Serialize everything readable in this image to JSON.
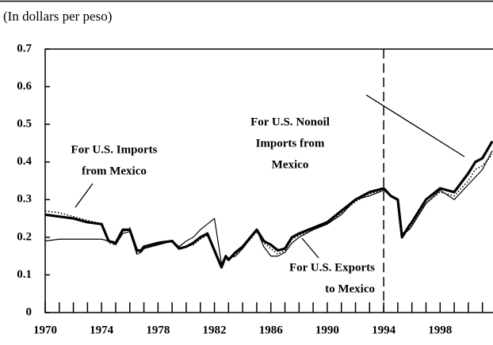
{
  "chart_data": {
    "type": "line",
    "subtitle": "(In dollars per peso)",
    "x": [
      1970,
      1971,
      1972,
      1973,
      1974,
      1974.5,
      1975,
      1975.5,
      1976,
      1976.5,
      1976.8,
      1977,
      1978,
      1979,
      1979.5,
      1980,
      1980.5,
      1981,
      1981.5,
      1982,
      1982.5,
      1982.8,
      1983,
      1983.5,
      1984,
      1985,
      1985.5,
      1986,
      1986.5,
      1987,
      1987.5,
      1988,
      1989,
      1990,
      1991,
      1992,
      1993,
      1994,
      1994.5,
      1995,
      1995.3,
      1995.8,
      1996,
      1997,
      1998,
      1999,
      2000,
      2000.5,
      2001,
      2001.7
    ],
    "series": [
      {
        "name": "For U.S. Nonoil Imports from Mexico",
        "color": "#000",
        "style": "thick",
        "values": [
          0.26,
          0.255,
          0.25,
          0.24,
          0.235,
          0.19,
          0.185,
          0.22,
          0.22,
          0.165,
          0.165,
          0.175,
          0.185,
          0.19,
          0.17,
          0.175,
          0.185,
          0.2,
          0.21,
          0.165,
          0.12,
          0.15,
          0.14,
          0.16,
          0.175,
          0.22,
          0.19,
          0.18,
          0.165,
          0.17,
          0.2,
          0.21,
          0.225,
          0.24,
          0.27,
          0.3,
          0.32,
          0.33,
          0.31,
          0.3,
          0.2,
          0.23,
          0.24,
          0.3,
          0.33,
          0.32,
          0.37,
          0.4,
          0.41,
          0.455
        ]
      },
      {
        "name": "For U.S. Imports from Mexico",
        "color": "#000",
        "style": "dotted",
        "values": [
          0.27,
          0.265,
          0.255,
          0.245,
          0.235,
          0.185,
          0.18,
          0.215,
          0.225,
          0.16,
          0.16,
          0.17,
          0.18,
          0.19,
          0.17,
          0.175,
          0.18,
          0.195,
          0.205,
          0.17,
          0.12,
          0.145,
          0.14,
          0.155,
          0.17,
          0.215,
          0.185,
          0.17,
          0.155,
          0.165,
          0.195,
          0.205,
          0.22,
          0.235,
          0.265,
          0.295,
          0.315,
          0.325,
          0.31,
          0.3,
          0.205,
          0.22,
          0.23,
          0.29,
          0.32,
          0.31,
          0.35,
          0.38,
          0.39,
          0.42
        ]
      },
      {
        "name": "For U.S. Exports to Mexico",
        "color": "#000",
        "style": "thin",
        "values": [
          0.19,
          0.195,
          0.195,
          0.195,
          0.195,
          0.19,
          0.18,
          0.21,
          0.215,
          0.155,
          0.16,
          0.17,
          0.18,
          0.19,
          0.175,
          0.19,
          0.2,
          0.22,
          0.235,
          0.25,
          0.13,
          0.15,
          0.145,
          0.15,
          0.17,
          0.22,
          0.175,
          0.15,
          0.15,
          0.16,
          0.185,
          0.2,
          0.22,
          0.235,
          0.26,
          0.3,
          0.31,
          0.325,
          0.31,
          0.3,
          0.21,
          0.22,
          0.23,
          0.29,
          0.325,
          0.3,
          0.34,
          0.36,
          0.38,
          0.43
        ]
      }
    ],
    "annotations": [
      {
        "lines": [
          "For U.S. Nonoil",
          "Imports from",
          "Mexico"
        ]
      },
      {
        "lines": [
          "For U.S. Imports",
          "from Mexico"
        ]
      },
      {
        "lines": [
          "For U.S. Exports",
          "to Mexico"
        ]
      }
    ],
    "reference_line": {
      "x": 1994,
      "style": "dashed"
    },
    "xlim": [
      1970,
      2001.75
    ],
    "xticks": [
      1970,
      1974,
      1978,
      1982,
      1986,
      1990,
      1994,
      1998
    ],
    "xticks_minor": [
      1971,
      1972,
      1973,
      1975,
      1976,
      1977,
      1979,
      1980,
      1981,
      1983,
      1984,
      1985,
      1987,
      1988,
      1989,
      1991,
      1992,
      1993,
      1995,
      1996,
      1997,
      1999,
      2000,
      2001
    ],
    "ylim": [
      0,
      0.7
    ],
    "yticks": [
      0,
      0.1,
      0.2,
      0.3,
      0.4,
      0.5,
      0.6,
      0.7
    ],
    "grid": false
  }
}
